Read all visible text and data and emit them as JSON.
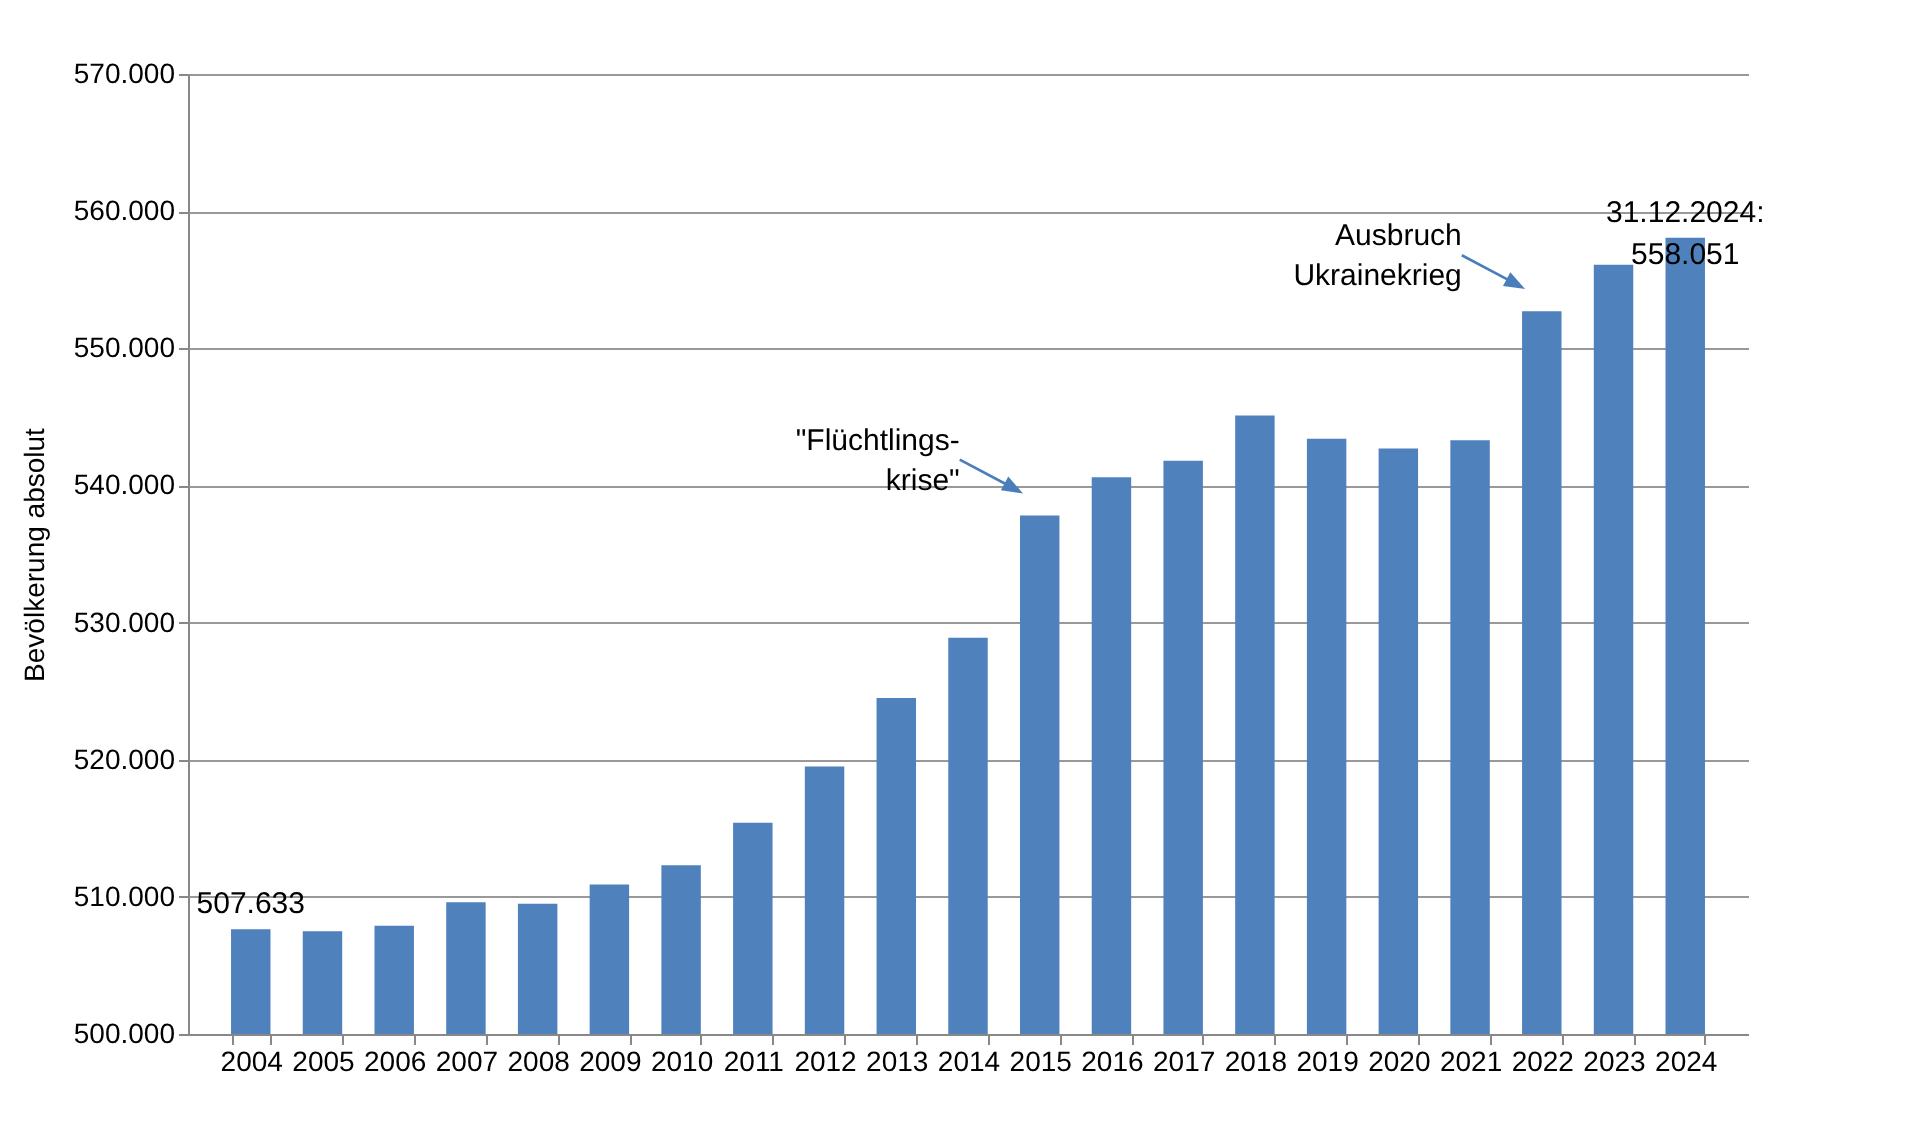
{
  "chart_data": {
    "type": "bar",
    "ylabel": "Bevölkerung absolut",
    "categories": [
      "2004",
      "2005",
      "2006",
      "2007",
      "2008",
      "2009",
      "2010",
      "2011",
      "2012",
      "2013",
      "2014",
      "2015",
      "2016",
      "2017",
      "2018",
      "2019",
      "2020",
      "2021",
      "2022",
      "2023",
      "2024"
    ],
    "values": [
      507633,
      507500,
      507900,
      509600,
      509500,
      510900,
      512300,
      515400,
      519500,
      524500,
      528900,
      537800,
      540600,
      541800,
      545100,
      543400,
      542700,
      543300,
      552700,
      556100,
      558051
    ],
    "value_labels": [
      "507.633",
      null,
      null,
      null,
      null,
      null,
      null,
      null,
      null,
      null,
      null,
      null,
      null,
      null,
      null,
      null,
      null,
      null,
      null,
      null,
      "31.12.2024:\n558.051"
    ],
    "color": "#4f81bd",
    "ylim": [
      500000,
      570000
    ],
    "yticks": [
      {
        "value": 500000,
        "label": "500.000"
      },
      {
        "value": 510000,
        "label": "510.000"
      },
      {
        "value": 520000,
        "label": "520.000"
      },
      {
        "value": 530000,
        "label": "530.000"
      },
      {
        "value": 540000,
        "label": "540.000"
      },
      {
        "value": 550000,
        "label": "550.000"
      },
      {
        "value": 560000,
        "label": "560.000"
      },
      {
        "value": 570000,
        "label": "570.000"
      }
    ],
    "grid": true,
    "annotations": [
      {
        "text": "\"Flüchtlings-\nkrise\"",
        "x": "2015",
        "y": 537800
      },
      {
        "text": "Ausbruch\nUkrainekrieg",
        "x": "2022",
        "y": 552700
      }
    ]
  }
}
